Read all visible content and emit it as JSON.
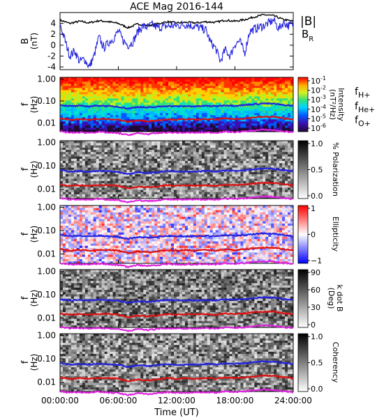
{
  "figure": {
    "title": "ACE Mag 2016-144"
  },
  "chart_data": [
    {
      "panel": "field",
      "type": "line",
      "ylabel": "B",
      "yunit": "(nT)",
      "ylim": [
        -4.5,
        6
      ],
      "yticks": [
        "4",
        "2",
        "0",
        "-2",
        "-4"
      ],
      "ytick_values": [
        4,
        2,
        0,
        -2,
        -4
      ],
      "legend": [
        {
          "label": "|B|",
          "sub": "",
          "color": "#000000"
        },
        {
          "label": "B",
          "sub": "R",
          "color": "#2222dd"
        }
      ],
      "series": [
        {
          "name": "|B|",
          "color": "#000000",
          "x": [
            0,
            1,
            2,
            3,
            4,
            5,
            6,
            7,
            8,
            9,
            10,
            11,
            12,
            13,
            14,
            15,
            16,
            17,
            18,
            19,
            20,
            21,
            22,
            23,
            24
          ],
          "values": [
            4.6,
            4.0,
            4.4,
            4.1,
            4.5,
            4.3,
            4.0,
            3.2,
            3.9,
            3.6,
            3.9,
            4.3,
            4.1,
            4.2,
            4.1,
            4.3,
            4.2,
            4.6,
            4.4,
            4.7,
            5.2,
            5.6,
            5.4,
            4.7,
            4.4
          ]
        },
        {
          "name": "B R",
          "color": "#2222dd",
          "x": [
            0,
            0.5,
            1,
            1.5,
            2,
            2.5,
            3,
            3.5,
            4,
            4.5,
            5,
            5.5,
            6,
            6.5,
            7,
            7.5,
            8,
            8.5,
            9,
            9.5,
            10,
            11,
            12,
            13,
            14,
            15,
            15.5,
            16,
            16.5,
            17,
            17.5,
            18,
            18.5,
            19,
            19.5,
            20,
            21,
            22,
            22.5,
            23,
            23.5,
            24
          ],
          "values": [
            3.8,
            1.0,
            -2.0,
            -1.0,
            -3.0,
            -2.5,
            -4.0,
            -2.0,
            1.5,
            -0.5,
            0.5,
            1.2,
            2.6,
            0.8,
            0.0,
            0.6,
            2.5,
            3.5,
            3.3,
            3.8,
            3.2,
            3.5,
            3.6,
            3.8,
            3.4,
            2.8,
            0.5,
            -0.5,
            -3.0,
            -0.8,
            -2.0,
            0.2,
            0.8,
            -1.5,
            2.5,
            3.0,
            3.6,
            4.6,
            3.0,
            4.2,
            3.6,
            3.8
          ]
        }
      ]
    },
    {
      "panel": "intensity",
      "type": "heatmap",
      "ylabel": "f",
      "yunit": "(Hz)",
      "ylim": [
        0.004,
        1.2
      ],
      "yscale": "log",
      "yticks": [
        "1.00",
        "0.10",
        "0.01"
      ],
      "ytick_values": [
        1,
        0.1,
        0.01
      ],
      "colorbar": {
        "label": "Intensity",
        "unit": "(nT²/Hz)",
        "ticks": [
          "10",
          "10",
          "10",
          "10",
          "10",
          "10"
        ],
        "tick_exp": [
          "-1",
          "-2",
          "-3",
          "-4",
          "-5",
          "-6"
        ],
        "colors": [
          "#1f0a33",
          "#3b0fb0",
          "#0059ff",
          "#00d4ff",
          "#33e07a",
          "#d8f020",
          "#ffb000",
          "#ff3300",
          "#ff0000"
        ]
      },
      "cyclotron_legend": [
        {
          "label": "f",
          "sub": "H+",
          "color": "#2222dd"
        },
        {
          "label": "f",
          "sub": "He+",
          "color": "#dd1111"
        },
        {
          "label": "f",
          "sub": "O+",
          "color": "#dd22dd"
        }
      ]
    },
    {
      "panel": "polarization",
      "type": "heatmap",
      "ylabel": "f",
      "yunit": "(Hz)",
      "yscale": "log",
      "yticks": [
        "1.00",
        "0.10",
        "0.01"
      ],
      "ytick_values": [
        1,
        0.1,
        0.01
      ],
      "colorbar": {
        "label": "% Polarization",
        "ticks": [
          "1.0",
          "0.5",
          "0.0"
        ],
        "colors": [
          "#ffffff",
          "#000000"
        ]
      }
    },
    {
      "panel": "ellipticity",
      "type": "heatmap",
      "ylabel": "f",
      "yunit": "(Hz)",
      "yscale": "log",
      "yticks": [
        "1.00",
        "0.10",
        "0.01"
      ],
      "ytick_values": [
        1,
        0.1,
        0.01
      ],
      "colorbar": {
        "label": "Ellipticity",
        "ticks": [
          "1",
          "0",
          "−1"
        ],
        "colors": [
          "#0000ff",
          "#ffffff",
          "#ff0000"
        ]
      }
    },
    {
      "panel": "wave-angle",
      "type": "heatmap",
      "ylabel": "f",
      "yunit": "(Hz)",
      "yscale": "log",
      "yticks": [
        "1.00",
        "0.10",
        "0.01"
      ],
      "ytick_values": [
        1,
        0.1,
        0.01
      ],
      "colorbar": {
        "label": "k dot B",
        "unit": "(Deg)",
        "ticks": [
          "90",
          "60",
          "30",
          "0"
        ],
        "colors": [
          "#ffffff",
          "#000000"
        ]
      }
    },
    {
      "panel": "coherency",
      "type": "heatmap",
      "ylabel": "f",
      "yunit": "(Hz)",
      "yscale": "log",
      "yticks": [
        "1.00",
        "0.10",
        "0.01"
      ],
      "ytick_values": [
        1,
        0.1,
        0.01
      ],
      "colorbar": {
        "label": "Coherency",
        "ticks": [
          "1.0",
          "0.5",
          "0.0"
        ],
        "colors": [
          "#ffffff",
          "#000000"
        ]
      }
    }
  ],
  "cyclotron_lines": {
    "x": [
      0,
      1,
      2,
      3,
      4,
      5,
      6,
      7,
      8,
      9,
      10,
      11,
      12,
      13,
      14,
      15,
      16,
      17,
      18,
      19,
      20,
      21,
      22,
      23,
      24
    ],
    "H+": [
      0.066,
      0.058,
      0.06,
      0.057,
      0.062,
      0.058,
      0.055,
      0.045,
      0.054,
      0.05,
      0.054,
      0.06,
      0.057,
      0.058,
      0.057,
      0.06,
      0.058,
      0.064,
      0.061,
      0.065,
      0.072,
      0.078,
      0.075,
      0.065,
      0.061
    ],
    "He+": [
      0.016,
      0.014,
      0.015,
      0.014,
      0.015,
      0.015,
      0.014,
      0.011,
      0.013,
      0.012,
      0.013,
      0.015,
      0.014,
      0.015,
      0.014,
      0.015,
      0.014,
      0.016,
      0.015,
      0.016,
      0.018,
      0.019,
      0.019,
      0.016,
      0.015
    ],
    "O+": [
      0.0041,
      0.0036,
      0.0037,
      0.0036,
      0.0039,
      0.0036,
      0.0034,
      0.0028,
      0.0034,
      0.0031,
      0.0034,
      0.0037,
      0.0036,
      0.0036,
      0.0036,
      0.0037,
      0.0036,
      0.004,
      0.0038,
      0.0041,
      0.0045,
      0.0049,
      0.0047,
      0.0041,
      0.0038
    ]
  },
  "time_axis": {
    "label": "Time (UT)",
    "ticks": [
      "00:00:00",
      "06:00:00",
      "12:00:00",
      "18:00:00",
      "24:00:00"
    ],
    "tick_hours": [
      0,
      6,
      12,
      18,
      24
    ]
  }
}
